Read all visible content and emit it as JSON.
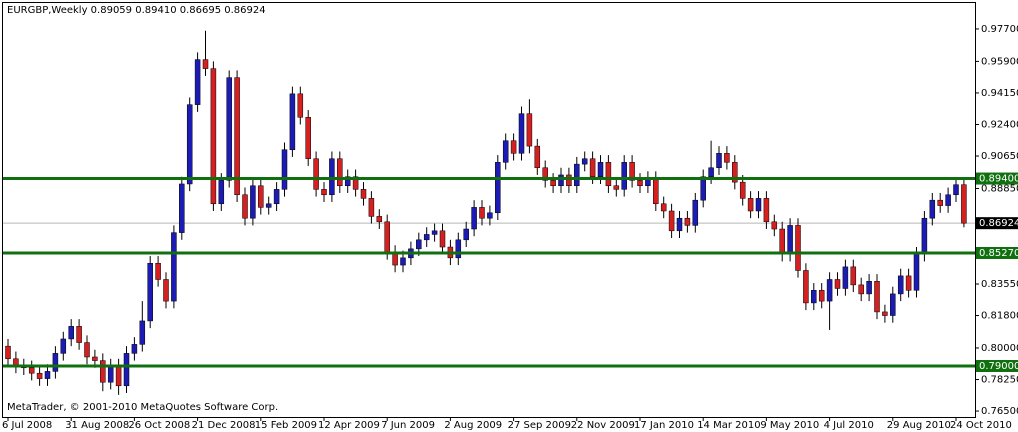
{
  "chart_data": {
    "type": "candlestick",
    "title": "EURGBP,Weekly  0.89059 0.89410 0.86695 0.86924",
    "footer": "MetaTrader, © 2001-2010 MetaQuotes Software Corp.",
    "categories": [
      "6 Jul 2008",
      null,
      null,
      null,
      null,
      null,
      null,
      null,
      "31 Aug 2008",
      null,
      null,
      null,
      null,
      null,
      null,
      null,
      "26 Oct 2008",
      null,
      null,
      null,
      null,
      null,
      null,
      null,
      "21 Dec 2008",
      null,
      null,
      null,
      null,
      null,
      null,
      null,
      "15 Feb 2009",
      null,
      null,
      null,
      null,
      null,
      null,
      null,
      "12 Apr 2009",
      null,
      null,
      null,
      null,
      null,
      null,
      null,
      "7 Jun 2009",
      null,
      null,
      null,
      null,
      null,
      null,
      null,
      "2 Aug 2009",
      null,
      null,
      null,
      null,
      null,
      null,
      null,
      "27 Sep 2009",
      null,
      null,
      null,
      null,
      null,
      null,
      null,
      "22 Nov 2009",
      null,
      null,
      null,
      null,
      null,
      null,
      null,
      "17 Jan 2010",
      null,
      null,
      null,
      null,
      null,
      null,
      null,
      "14 Mar 2010",
      null,
      null,
      null,
      null,
      null,
      null,
      null,
      "9 May 2010",
      null,
      null,
      null,
      null,
      null,
      null,
      null,
      "4 Jul 2010",
      null,
      null,
      null,
      null,
      null,
      null,
      null,
      "29 Aug 2010",
      null,
      null,
      null,
      null,
      null,
      null,
      null,
      "24 Oct 2010",
      null
    ],
    "open": [
      0.801,
      0.794,
      0.79,
      0.789,
      0.786,
      0.783,
      0.787,
      0.797,
      0.805,
      0.812,
      0.803,
      0.795,
      0.793,
      0.781,
      0.79,
      0.779,
      0.797,
      0.802,
      0.815,
      0.847,
      0.838,
      0.826,
      0.864,
      0.891,
      0.935,
      0.96,
      0.955,
      0.88,
      0.893,
      0.95,
      0.885,
      0.872,
      0.89,
      0.878,
      0.88,
      0.888,
      0.91,
      0.941,
      0.928,
      0.905,
      0.888,
      0.885,
      0.905,
      0.89,
      0.895,
      0.888,
      0.883,
      0.873,
      0.87,
      0.853,
      0.846,
      0.85,
      0.855,
      0.86,
      0.863,
      0.865,
      0.856,
      0.85,
      0.86,
      0.866,
      0.878,
      0.872,
      0.875,
      0.903,
      0.915,
      0.908,
      0.93,
      0.912,
      0.9,
      0.893,
      0.89,
      0.896,
      0.89,
      0.902,
      0.905,
      0.895,
      0.903,
      0.89,
      0.888,
      0.903,
      0.893,
      0.89,
      0.894,
      0.88,
      0.876,
      0.865,
      0.872,
      0.868,
      0.882,
      0.895,
      0.9,
      0.908,
      0.903,
      0.892,
      0.883,
      0.876,
      0.883,
      0.87,
      0.866,
      0.852,
      0.868,
      0.843,
      0.825,
      0.832,
      0.826,
      0.838,
      0.833,
      0.845,
      0.835,
      0.83,
      0.837,
      0.82,
      0.818,
      0.83,
      0.84,
      0.832,
      0.852,
      0.872,
      0.882,
      0.879,
      0.885,
      0.89059
    ],
    "high": [
      0.805,
      0.798,
      0.794,
      0.793,
      0.79,
      0.791,
      0.801,
      0.809,
      0.816,
      0.816,
      0.807,
      0.799,
      0.797,
      0.794,
      0.794,
      0.801,
      0.806,
      0.826,
      0.851,
      0.851,
      0.842,
      0.868,
      0.895,
      0.939,
      0.964,
      0.976,
      0.959,
      0.897,
      0.954,
      0.954,
      0.889,
      0.894,
      0.894,
      0.884,
      0.892,
      0.914,
      0.945,
      0.945,
      0.932,
      0.909,
      0.892,
      0.909,
      0.909,
      0.899,
      0.899,
      0.892,
      0.887,
      0.877,
      0.874,
      0.857,
      0.854,
      0.859,
      0.864,
      0.867,
      0.869,
      0.869,
      0.86,
      0.864,
      0.87,
      0.882,
      0.882,
      0.879,
      0.907,
      0.919,
      0.919,
      0.934,
      0.938,
      0.916,
      0.904,
      0.897,
      0.9,
      0.9,
      0.906,
      0.909,
      0.909,
      0.907,
      0.907,
      0.894,
      0.907,
      0.907,
      0.897,
      0.898,
      0.898,
      0.884,
      0.88,
      0.876,
      0.876,
      0.886,
      0.899,
      0.915,
      0.912,
      0.912,
      0.907,
      0.896,
      0.887,
      0.887,
      0.887,
      0.874,
      0.87,
      0.872,
      0.872,
      0.847,
      0.836,
      0.836,
      0.842,
      0.842,
      0.849,
      0.849,
      0.839,
      0.841,
      0.841,
      0.824,
      0.834,
      0.844,
      0.844,
      0.856,
      0.876,
      0.886,
      0.886,
      0.889,
      0.8946,
      0.8941
    ],
    "low": [
      0.79,
      0.786,
      0.785,
      0.782,
      0.779,
      0.779,
      0.783,
      0.793,
      0.801,
      0.799,
      0.791,
      0.789,
      0.776,
      0.777,
      0.774,
      0.775,
      0.793,
      0.798,
      0.811,
      0.834,
      0.822,
      0.822,
      0.86,
      0.887,
      0.931,
      0.951,
      0.876,
      0.876,
      0.889,
      0.881,
      0.868,
      0.868,
      0.874,
      0.874,
      0.876,
      0.884,
      0.906,
      0.924,
      0.901,
      0.884,
      0.881,
      0.881,
      0.886,
      0.886,
      0.884,
      0.879,
      0.869,
      0.866,
      0.849,
      0.842,
      0.842,
      0.846,
      0.851,
      0.856,
      0.859,
      0.852,
      0.846,
      0.846,
      0.856,
      0.862,
      0.868,
      0.868,
      0.871,
      0.899,
      0.904,
      0.904,
      0.908,
      0.896,
      0.889,
      0.886,
      0.886,
      0.886,
      0.886,
      0.898,
      0.891,
      0.891,
      0.886,
      0.884,
      0.884,
      0.889,
      0.886,
      0.886,
      0.876,
      0.872,
      0.861,
      0.861,
      0.864,
      0.864,
      0.878,
      0.891,
      0.896,
      0.899,
      0.888,
      0.879,
      0.872,
      0.872,
      0.866,
      0.862,
      0.848,
      0.848,
      0.839,
      0.821,
      0.821,
      0.822,
      0.81,
      0.829,
      0.829,
      0.831,
      0.826,
      0.826,
      0.816,
      0.814,
      0.814,
      0.826,
      0.828,
      0.828,
      0.848,
      0.868,
      0.875,
      0.875,
      0.881,
      0.86695
    ],
    "close": [
      0.794,
      0.79,
      0.789,
      0.786,
      0.783,
      0.787,
      0.797,
      0.805,
      0.812,
      0.803,
      0.795,
      0.793,
      0.781,
      0.79,
      0.779,
      0.797,
      0.802,
      0.815,
      0.847,
      0.838,
      0.826,
      0.864,
      0.891,
      0.935,
      0.96,
      0.955,
      0.88,
      0.893,
      0.95,
      0.885,
      0.872,
      0.89,
      0.878,
      0.88,
      0.888,
      0.91,
      0.941,
      0.928,
      0.905,
      0.888,
      0.885,
      0.905,
      0.89,
      0.895,
      0.888,
      0.883,
      0.873,
      0.87,
      0.853,
      0.846,
      0.85,
      0.855,
      0.86,
      0.863,
      0.865,
      0.856,
      0.85,
      0.86,
      0.866,
      0.878,
      0.872,
      0.875,
      0.903,
      0.915,
      0.908,
      0.93,
      0.912,
      0.9,
      0.893,
      0.89,
      0.896,
      0.89,
      0.902,
      0.905,
      0.895,
      0.903,
      0.89,
      0.888,
      0.903,
      0.893,
      0.89,
      0.894,
      0.88,
      0.876,
      0.865,
      0.872,
      0.868,
      0.882,
      0.895,
      0.9,
      0.908,
      0.903,
      0.892,
      0.883,
      0.876,
      0.883,
      0.87,
      0.866,
      0.852,
      0.868,
      0.843,
      0.825,
      0.832,
      0.826,
      0.838,
      0.833,
      0.845,
      0.835,
      0.83,
      0.837,
      0.82,
      0.818,
      0.83,
      0.84,
      0.832,
      0.852,
      0.872,
      0.882,
      0.879,
      0.885,
      0.8906,
      0.86924
    ],
    "up_color": "#1c1cb4",
    "down_color": "#d42020",
    "wick_color": "#000000",
    "ylim": [
      0.7617,
      0.9914
    ],
    "yticks": [
      {
        "value": 0.977,
        "label": "0.97700"
      },
      {
        "value": 0.959,
        "label": "0.95900"
      },
      {
        "value": 0.9415,
        "label": "0.94150"
      },
      {
        "value": 0.924,
        "label": "0.92400"
      },
      {
        "value": 0.9065,
        "label": "0.90650"
      },
      {
        "value": 0.8885,
        "label": "0.88850"
      },
      {
        "value": 0.8355,
        "label": "0.83550"
      },
      {
        "value": 0.818,
        "label": "0.81800"
      },
      {
        "value": 0.8,
        "label": "0.80000"
      },
      {
        "value": 0.7825,
        "label": "0.78250"
      },
      {
        "value": 0.765,
        "label": "0.76500"
      }
    ],
    "levels": [
      {
        "value": 0.894,
        "label": "0.89400"
      },
      {
        "value": 0.8527,
        "label": "0.85270"
      },
      {
        "value": 0.79,
        "label": "0.79000"
      }
    ],
    "level_color": "#107010",
    "current_price": {
      "value": 0.86924,
      "label": "0.86924"
    }
  }
}
